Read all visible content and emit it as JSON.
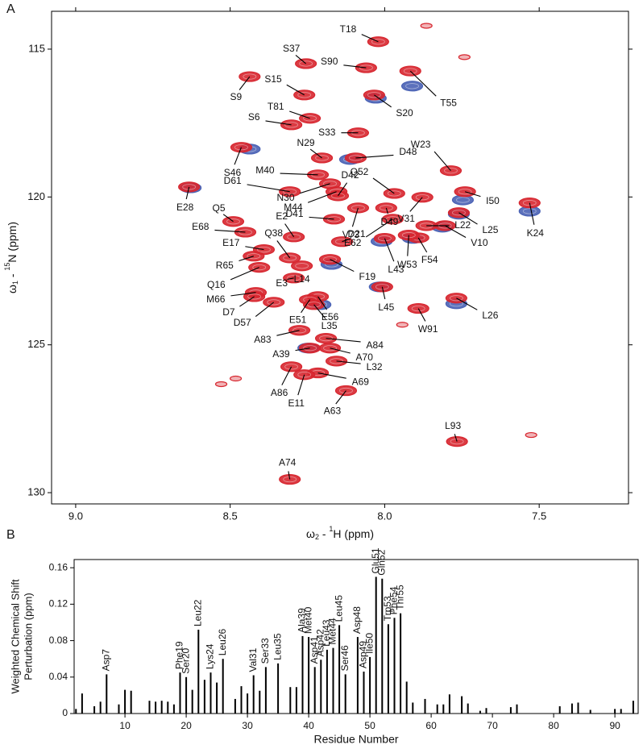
{
  "chart_data": [
    {
      "type": "scatter",
      "panel_label": "A",
      "xlabel": [
        "ω",
        "2",
        " - ",
        "1",
        "H  (ppm)"
      ],
      "ylabel": [
        "ω",
        "1",
        " - ",
        "15",
        "N  (ppm)"
      ],
      "xlim": [
        9.078,
        7.211
      ],
      "ylim": [
        130.38,
        113.72
      ],
      "xticks": [
        {
          "value": 9,
          "label": "9.0"
        },
        8.5,
        {
          "value": 8,
          "label": "8.0"
        },
        7.5
      ],
      "yticks": [
        115,
        120,
        125,
        130
      ],
      "series": [
        {
          "color": "#4a62b5",
          "x": [
            7.911,
            8.029,
            7.747,
            7.531,
            7.76,
            7.909,
            8.016,
            7.768,
            8.437,
            8.172,
            8.208,
            8.247,
            8.112,
            7.813,
            8.628,
            8.01
          ],
          "y": [
            116.25,
            116.66,
            120.1,
            120.48,
            120.58,
            121.4,
            123.04,
            123.61,
            118.38,
            122.28,
            123.64,
            125.11,
            118.73,
            121.02,
            119.69,
            121.5
          ]
        },
        {
          "color": "#d7262f",
          "x": [
            8.021,
            8.255,
            8.06,
            8.437,
            8.26,
            7.917,
            8.034,
            8.242,
            8.302,
            8.086,
            8.203,
            8.094,
            7.786,
            8.464,
            8.216,
            8.307,
            8.633,
            8.177,
            8.156,
            8.151,
            7.969,
            7.74,
            8.164,
            8.294,
            7.995,
            7.878,
            8.086,
            7.974,
            8.49,
            8.451,
            7.76,
            7.531,
            7.805,
            7.865,
            7.891,
            7.922,
            8.138,
            8.0,
            8.391,
            8.307,
            8.424,
            8.177,
            8.406,
            8.268,
            8.294,
            8.417,
            8.422,
            8.359,
            8.216,
            8.242,
            8.229,
            8.008,
            7.768,
            7.891,
            8.276,
            8.19,
            8.242,
            8.177,
            8.156,
            8.216,
            8.302,
            8.26,
            8.125,
            7.766,
            8.307,
            7.526,
            7.742,
            7.865,
            8.482,
            8.529,
            7.943
          ],
          "y": [
            114.75,
            115.49,
            115.63,
            115.93,
            116.55,
            115.74,
            116.55,
            117.34,
            117.56,
            117.83,
            118.68,
            118.68,
            119.11,
            118.32,
            119.25,
            119.82,
            119.66,
            119.55,
            119.82,
            119.96,
            119.88,
            119.82,
            120.75,
            121.35,
            120.37,
            120.01,
            120.37,
            120.75,
            120.83,
            121.19,
            120.53,
            120.2,
            120.97,
            120.97,
            121.38,
            121.29,
            121.51,
            121.4,
            121.78,
            122.06,
            122.0,
            122.11,
            122.38,
            122.33,
            122.74,
            123.23,
            123.37,
            123.56,
            123.37,
            123.47,
            123.64,
            123.04,
            123.42,
            123.77,
            124.51,
            124.78,
            125.11,
            125.11,
            125.55,
            125.95,
            125.74,
            126.01,
            126.55,
            128.27,
            129.55,
            128.05,
            115.27,
            114.21,
            126.14,
            126.33,
            124.32
          ],
          "labels": [
            "T18",
            "S37",
            "S90",
            "S9",
            "S15",
            "T55",
            "S20",
            "T81",
            "S6",
            "S33",
            "N29",
            "D48",
            "W23",
            "S46",
            "M40",
            "D61",
            "E28",
            "N30",
            "M44",
            "D42",
            "Q52",
            "I50",
            "D41",
            "E2",
            "D49",
            "V31",
            "V73",
            "E62",
            "Q5",
            "E68",
            "L25",
            "K24",
            "V10",
            "L22",
            "F54",
            "W53",
            "D21",
            "L43",
            "E17",
            "Q38",
            "R65",
            "F19",
            "Q16",
            "L14",
            "E3",
            "M66",
            "D7",
            "D57",
            "E56",
            "E51",
            "L35",
            "L45",
            "L26",
            "W91",
            "A83",
            "A84",
            "A39",
            "A70",
            "L32",
            "A69",
            "A86",
            "E11",
            "A63",
            "L93",
            "A74",
            null,
            null,
            null,
            null,
            null,
            null
          ]
        }
      ]
    },
    {
      "type": "bar",
      "panel_label": "B",
      "xlabel": "Residue Number",
      "ylabel": [
        "Weighted Chemical Shift",
        "Perturbation (ppm)"
      ],
      "xlim": [
        1.7,
        93.8
      ],
      "ylim": [
        0,
        0.169
      ],
      "xticks": [
        10,
        20,
        30,
        40,
        50,
        60,
        70,
        80,
        90
      ],
      "yticks": [
        0,
        0.04,
        0.08,
        0.12,
        0.16
      ],
      "color": "#000000",
      "x": [
        2,
        3,
        5,
        6,
        7,
        9,
        10,
        11,
        14,
        15,
        16,
        17,
        18,
        19,
        20,
        21,
        22,
        23,
        24,
        25,
        26,
        28,
        29,
        30,
        31,
        32,
        33,
        35,
        37,
        38,
        39,
        40,
        41,
        42,
        43,
        44,
        45,
        46,
        48,
        49,
        50,
        51,
        52,
        53,
        54,
        55,
        56,
        57,
        59,
        61,
        62,
        63,
        65,
        66,
        68,
        69,
        73,
        74,
        81,
        83,
        84,
        86,
        90,
        91,
        93
      ],
      "values": [
        0.005,
        0.022,
        0.008,
        0.013,
        0.043,
        0.01,
        0.026,
        0.025,
        0.014,
        0.013,
        0.014,
        0.013,
        0.01,
        0.045,
        0.04,
        0.026,
        0.092,
        0.037,
        0.045,
        0.034,
        0.06,
        0.016,
        0.03,
        0.022,
        0.042,
        0.025,
        0.051,
        0.055,
        0.029,
        0.029,
        0.085,
        0.084,
        0.051,
        0.059,
        0.07,
        0.072,
        0.097,
        0.043,
        0.084,
        0.046,
        0.062,
        0.15,
        0.148,
        0.098,
        0.105,
        0.11,
        0.035,
        0.012,
        0.016,
        0.01,
        0.01,
        0.021,
        0.019,
        0.011,
        0.003,
        0.006,
        0.007,
        0.01,
        0.008,
        0.011,
        0.012,
        0.004,
        0.005,
        0.005,
        0.014
      ],
      "bar_labels": [
        null,
        null,
        null,
        null,
        "Asp7",
        null,
        null,
        null,
        null,
        null,
        null,
        null,
        null,
        "Phe19",
        "Ser20",
        null,
        "Leu22",
        null,
        "Lys24",
        null,
        "Leu26",
        null,
        null,
        null,
        "Val31",
        null,
        "Ser33",
        "Leu35",
        null,
        null,
        "Ala39",
        "Met40",
        "Asp41",
        "Asp42",
        "Leu43",
        "Met44",
        "Leu45",
        "Ser46",
        "Asp48",
        "Asp49",
        "Ile50",
        "Glu51",
        "Gln52",
        "Trp53",
        "Phe54",
        "Thr55",
        null,
        null,
        null,
        null,
        null,
        null,
        null,
        null,
        null,
        null,
        null,
        null,
        null,
        null,
        null,
        null,
        null,
        null,
        null
      ]
    }
  ]
}
